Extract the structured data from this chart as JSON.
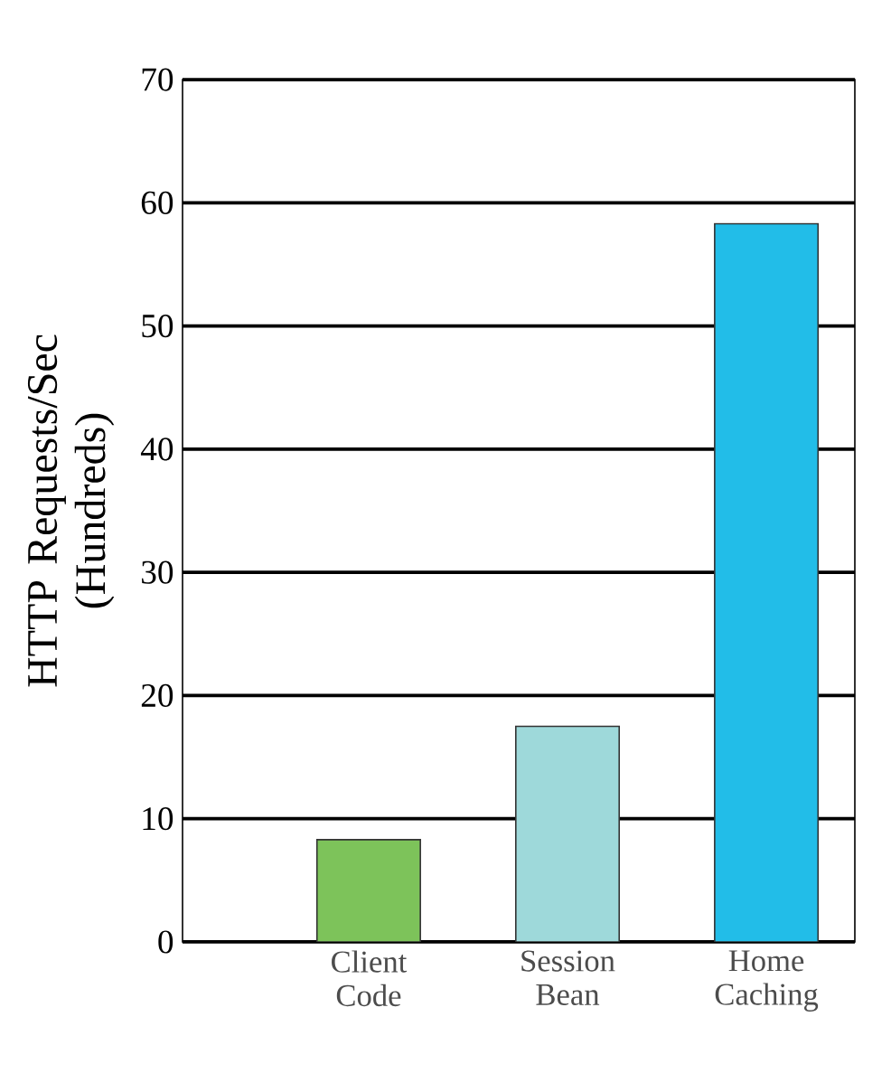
{
  "chart_data": {
    "type": "bar",
    "ylabel": "HTTP Requests/Sec (Hundreds)",
    "categories": [
      "Client Code",
      "Session Bean",
      "Home Caching"
    ],
    "values": [
      8.3,
      17.5,
      58.3
    ],
    "colors": [
      "#7dc35a",
      "#9ed9da",
      "#22bde8"
    ],
    "ylim": [
      0,
      70
    ],
    "yticks": [
      0,
      10,
      20,
      30,
      40,
      50,
      60,
      70
    ],
    "grid": "y"
  }
}
